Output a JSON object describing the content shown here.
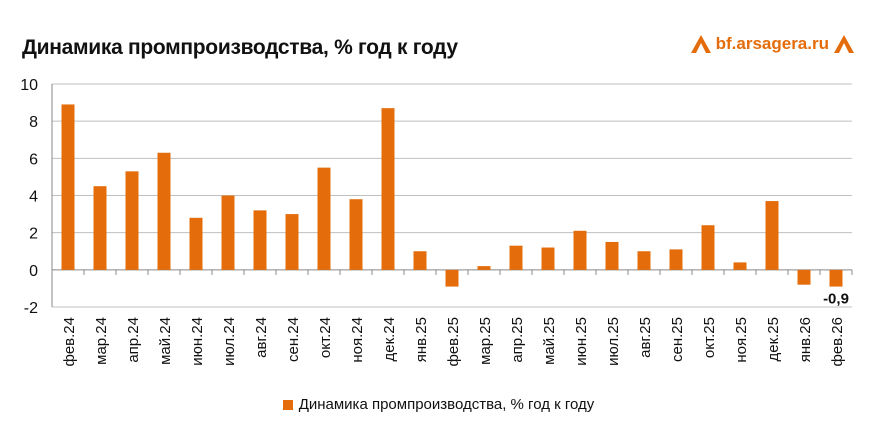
{
  "header": {
    "title": "Динамика промпроизводства, % год к году",
    "logo_text": "bf.arsagera.ru"
  },
  "chart_data": {
    "type": "bar",
    "title": "Динамика промпроизводства, % год к году",
    "xlabel": "",
    "ylabel": "",
    "ylim": [
      -2,
      10
    ],
    "yticks": [
      -2,
      0,
      2,
      4,
      6,
      8,
      10
    ],
    "grid": true,
    "legend_position": "bottom",
    "bar_color": "#e46c0a",
    "categories": [
      "фев.24",
      "мар.24",
      "апр.24",
      "май.24",
      "июн.24",
      "июл.24",
      "авг.24",
      "сен.24",
      "окт.24",
      "ноя.24",
      "дек.24",
      "янв.25",
      "фев.25",
      "мар.25",
      "апр.25",
      "май.25",
      "июн.25",
      "июл.25",
      "авг.25",
      "сен.25",
      "окт.25",
      "ноя.25",
      "дек.25",
      "янв.26",
      "фев.26"
    ],
    "series": [
      {
        "name": "Динамика промпроизводства, % год к году",
        "values": [
          8.9,
          4.5,
          5.3,
          6.3,
          2.8,
          4.0,
          3.2,
          3.0,
          5.5,
          3.8,
          8.7,
          1.0,
          -0.9,
          0.2,
          1.3,
          1.2,
          2.1,
          1.5,
          1.0,
          1.1,
          2.4,
          0.4,
          3.7,
          -0.8,
          -0.9
        ]
      }
    ],
    "data_labels": [
      {
        "category": "фев.26",
        "text": "-0,9"
      }
    ]
  }
}
